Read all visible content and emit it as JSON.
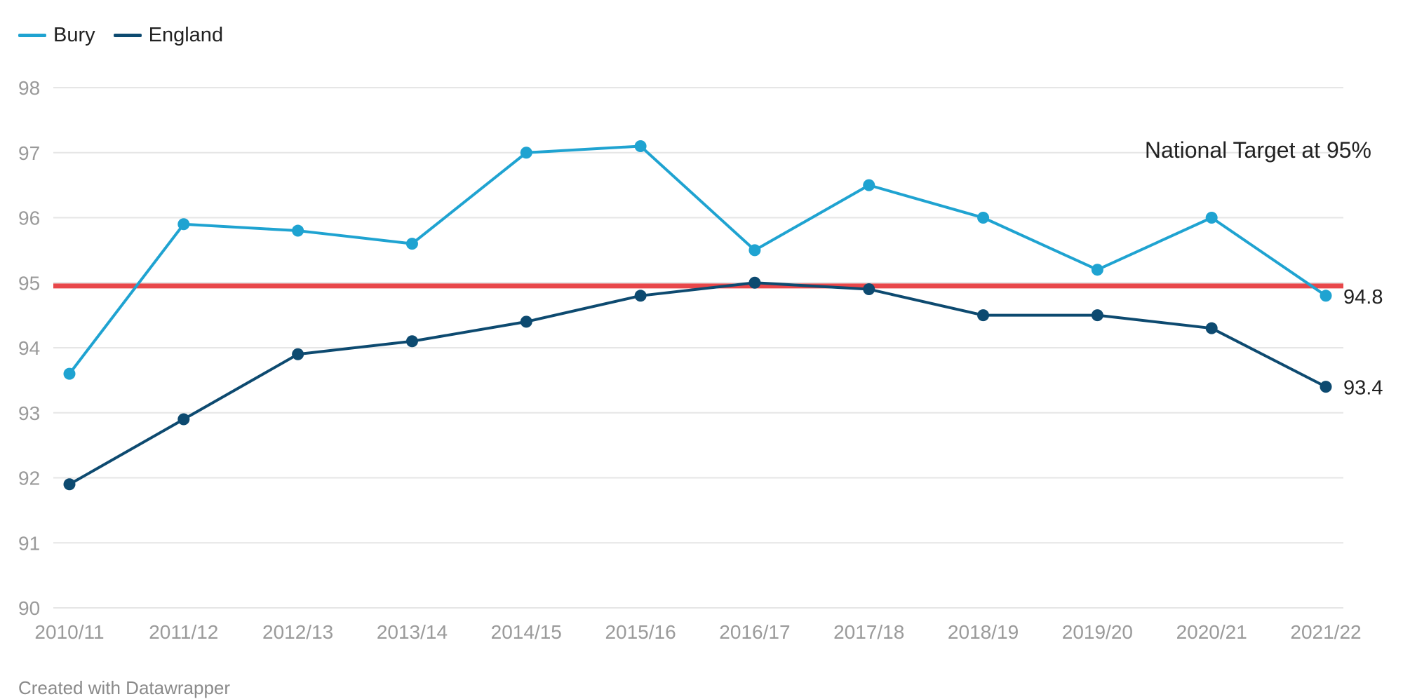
{
  "chart_data": {
    "type": "line",
    "title": "",
    "xlabel": "",
    "ylabel": "",
    "categories": [
      "2010/11",
      "2011/12",
      "2012/13",
      "2013/14",
      "2014/15",
      "2015/16",
      "2016/17",
      "2017/18",
      "2018/19",
      "2019/20",
      "2020/21",
      "2021/22"
    ],
    "ylim": [
      90,
      98
    ],
    "yticks": [
      90,
      91,
      92,
      93,
      94,
      95,
      96,
      97,
      98
    ],
    "grid": true,
    "legend_position": "top-left",
    "series": [
      {
        "name": "Bury",
        "color": "#1fa3d1",
        "values": [
          93.6,
          95.9,
          95.8,
          95.6,
          97.0,
          97.1,
          95.5,
          96.5,
          96.0,
          95.2,
          96.0,
          94.8
        ],
        "end_label": "94.8"
      },
      {
        "name": "England",
        "color": "#0d4a70",
        "values": [
          91.9,
          92.9,
          93.9,
          94.1,
          94.4,
          94.8,
          95.0,
          94.9,
          94.5,
          94.5,
          94.3,
          93.4
        ],
        "end_label": "93.4"
      }
    ],
    "reference_line": {
      "value": 94.95,
      "color": "#e8474a"
    },
    "annotations": [
      {
        "text": "National Target at 95%"
      }
    ]
  },
  "footer": {
    "credit": "Created with Datawrapper"
  }
}
